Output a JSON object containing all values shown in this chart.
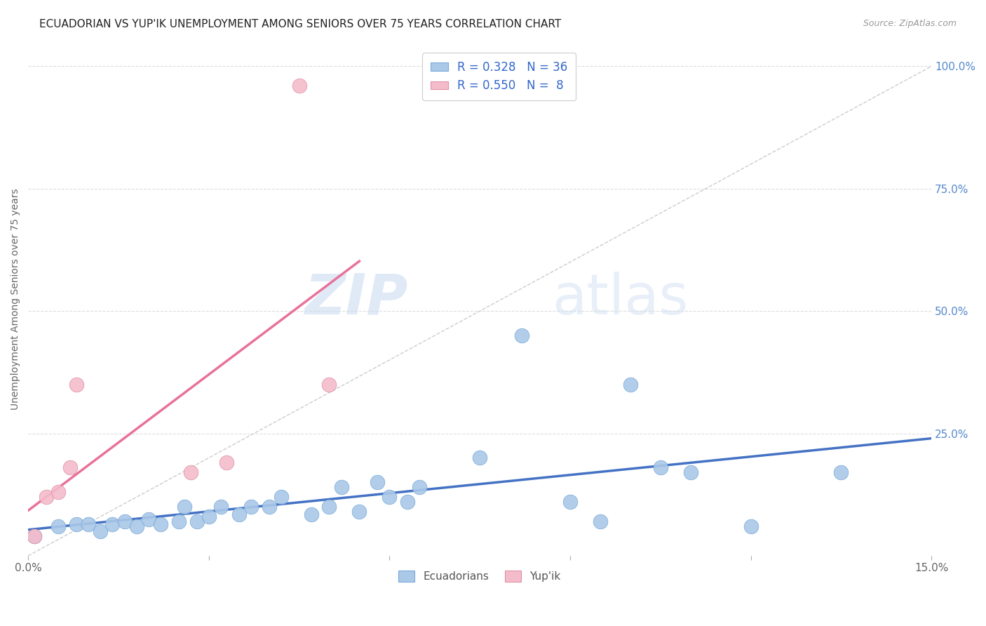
{
  "title": "ECUADORIAN VS YUP'IK UNEMPLOYMENT AMONG SENIORS OVER 75 YEARS CORRELATION CHART",
  "source": "Source: ZipAtlas.com",
  "ylabel": "Unemployment Among Seniors over 75 years",
  "xlim": [
    0.0,
    0.15
  ],
  "ylim": [
    0.0,
    1.05
  ],
  "xticks": [
    0.0,
    0.03,
    0.06,
    0.09,
    0.12,
    0.15
  ],
  "xticklabels": [
    "0.0%",
    "",
    "",
    "",
    "",
    "15.0%"
  ],
  "yticks_right": [
    0.0,
    0.25,
    0.5,
    0.75,
    1.0
  ],
  "yticklabels_right": [
    "",
    "25.0%",
    "50.0%",
    "75.0%",
    "100.0%"
  ],
  "background_color": "#ffffff",
  "watermark_text": "ZIP",
  "watermark_text2": "atlas",
  "ecuadorians_color": "#aac8e8",
  "yupik_color": "#f4bccb",
  "trendline_ecu_color": "#4472c4",
  "trendline_yupik_color": "#e8729a",
  "diagonal_color": "#cccccc",
  "ecu_R": 0.328,
  "ecu_N": 36,
  "yupik_R": 0.55,
  "yupik_N": 8,
  "ecuadorians_x": [
    0.001,
    0.005,
    0.008,
    0.01,
    0.012,
    0.014,
    0.016,
    0.018,
    0.02,
    0.022,
    0.025,
    0.026,
    0.028,
    0.03,
    0.032,
    0.035,
    0.037,
    0.04,
    0.042,
    0.047,
    0.05,
    0.052,
    0.055,
    0.058,
    0.06,
    0.063,
    0.065,
    0.075,
    0.082,
    0.09,
    0.095,
    0.1,
    0.105,
    0.11,
    0.12,
    0.135
  ],
  "ecuadorians_y": [
    0.04,
    0.06,
    0.065,
    0.065,
    0.05,
    0.065,
    0.07,
    0.06,
    0.075,
    0.065,
    0.07,
    0.1,
    0.07,
    0.08,
    0.1,
    0.085,
    0.1,
    0.1,
    0.12,
    0.085,
    0.1,
    0.14,
    0.09,
    0.15,
    0.12,
    0.11,
    0.14,
    0.2,
    0.45,
    0.11,
    0.07,
    0.35,
    0.18,
    0.17,
    0.06,
    0.17
  ],
  "yupik_x": [
    0.001,
    0.003,
    0.005,
    0.007,
    0.008,
    0.027,
    0.033,
    0.05
  ],
  "yupik_y": [
    0.04,
    0.12,
    0.13,
    0.18,
    0.35,
    0.17,
    0.19,
    0.35
  ]
}
